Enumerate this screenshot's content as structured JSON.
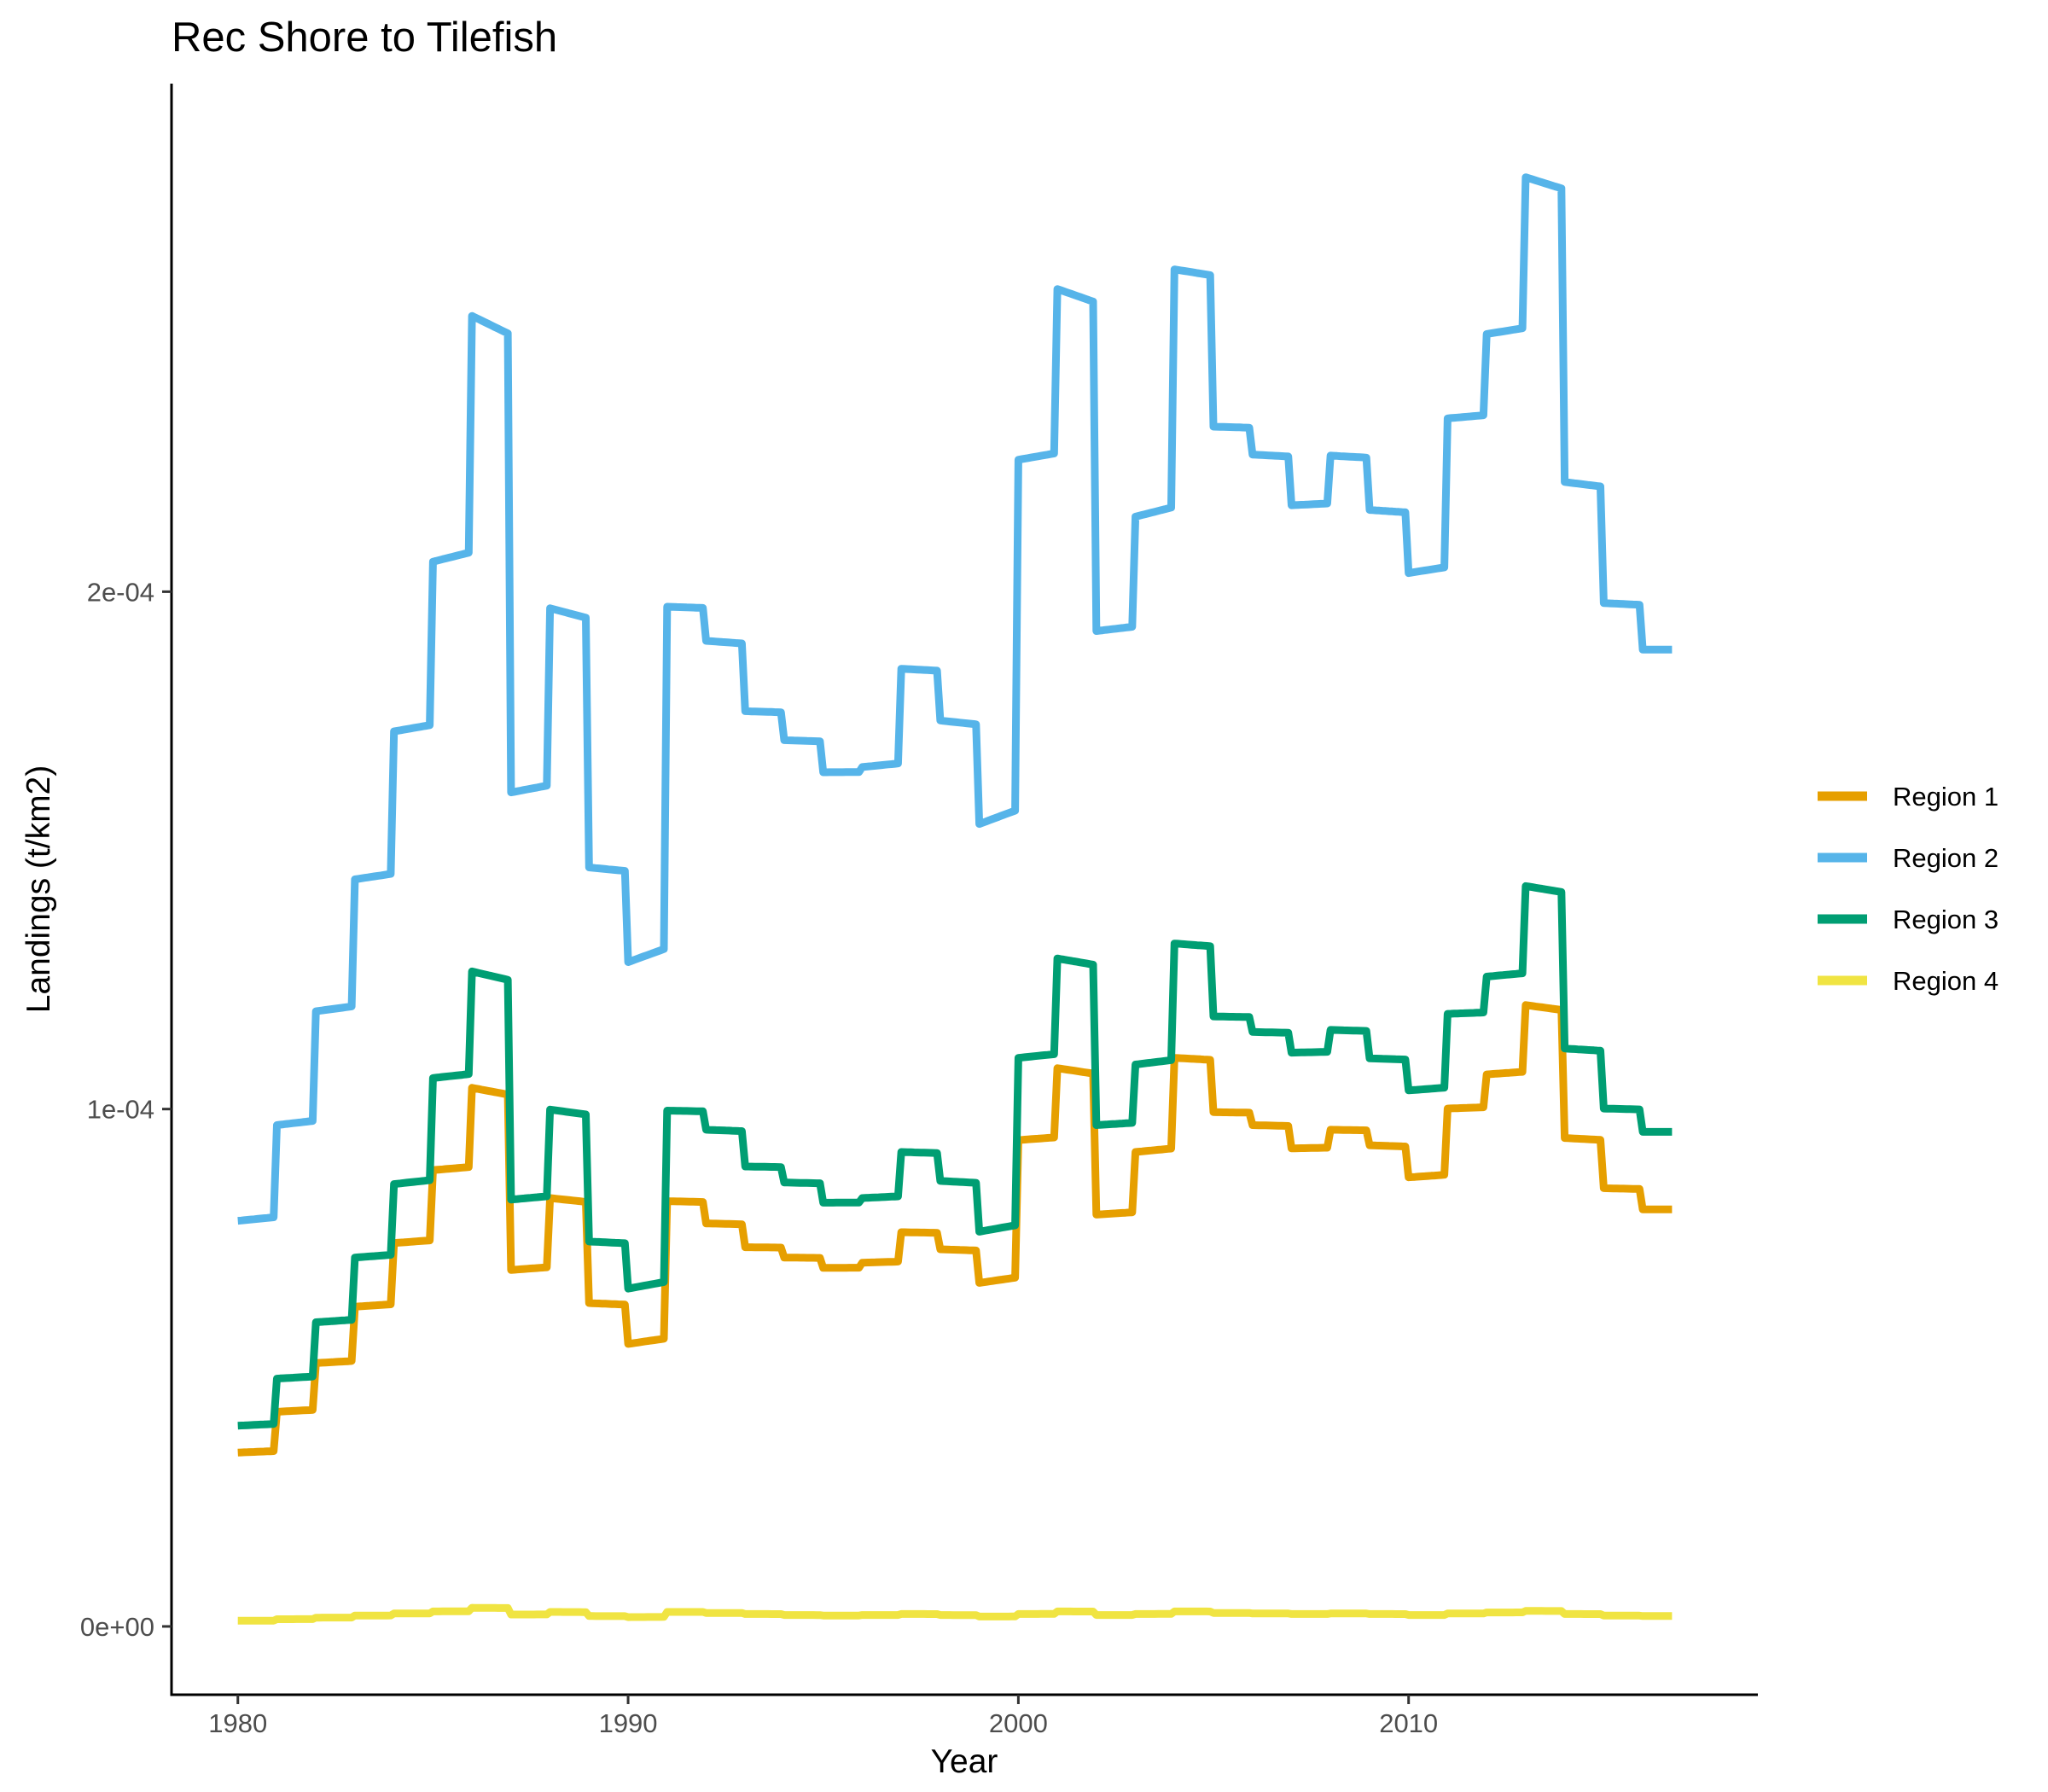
{
  "chart_data": {
    "type": "line",
    "title": "Rec Shore to Tilefish",
    "xlabel": "Year",
    "ylabel": "Landings (t/km2)",
    "xlim": [
      1978.3,
      2018.95
    ],
    "ylim": [
      -1.32e-05,
      0.0002982
    ],
    "x_ticks": [
      1980,
      1990,
      2000,
      2010
    ],
    "x_tick_labels": [
      "1980",
      "1990",
      "2000",
      "2010"
    ],
    "y_ticks": [
      0,
      0.0001,
      0.0002
    ],
    "y_tick_labels": [
      "0e+00",
      "1e-04",
      "2e-04"
    ],
    "grid": false,
    "legend_position": "right",
    "colors": {
      "Region 1": "#E69F00",
      "Region 2": "#56B4E9",
      "Region 3": "#009E73",
      "Region 4": "#F0E442"
    },
    "series": [
      {
        "name": "Region 1",
        "color": "#E69F00",
        "annual": [
          3.36e-05,
          4.15e-05,
          5.09e-05,
          6.18e-05,
          7.41e-05,
          8.82e-05,
          0.0001041,
          6.89e-05,
          8.28e-05,
          6.25e-05,
          5.46e-05,
          8.22e-05,
          7.79e-05,
          7.33e-05,
          7.13e-05,
          6.93e-05,
          7.03e-05,
          7.62e-05,
          7.29e-05,
          6.64e-05,
          9.4e-05,
          0.0001079,
          7.96e-05,
          9.17e-05,
          0.0001099,
          9.94e-05,
          9.69e-05,
          9.24e-05,
          9.6e-05,
          9.3e-05,
          8.68e-05,
          0.0001001,
          0.0001067,
          0.0001201,
          9.44e-05,
          8.47e-05,
          8.06e-05
        ]
      },
      {
        "name": "Region 2",
        "color": "#56B4E9",
        "annual": [
          7.84e-05,
          9.69e-05,
          0.0001189,
          0.0001444,
          0.000173,
          0.0002058,
          0.0002533,
          0.0001612,
          0.0001968,
          0.0001467,
          0.0001284,
          0.0001971,
          0.0001905,
          0.0001769,
          0.0001713,
          0.0001651,
          0.0001661,
          0.0001851,
          0.0001751,
          0.0001551,
          0.0002255,
          0.0002585,
          0.0001924,
          0.0002145,
          0.0002623,
          0.0002319,
          0.0002265,
          0.0002167,
          0.0002263,
          0.0002158,
          0.0002036,
          0.0002335,
          0.0002498,
          0.0002801,
          0.0002212,
          0.0001978,
          0.0001888
        ]
      },
      {
        "name": "Region 3",
        "color": "#009E73",
        "annual": [
          3.88e-05,
          4.79e-05,
          5.88e-05,
          7.13e-05,
          8.55e-05,
          0.000106,
          0.0001266,
          8.25e-05,
          9.99e-05,
          7.44e-05,
          6.53e-05,
          9.97e-05,
          9.6e-05,
          8.89e-05,
          8.58e-05,
          8.19e-05,
          8.28e-05,
          9.17e-05,
          8.61e-05,
          7.63e-05,
          0.0001099,
          0.0001291,
          9.69e-05,
          0.0001086,
          0.000132,
          0.0001179,
          0.0001149,
          0.0001109,
          0.0001153,
          0.0001098,
          0.0001036,
          0.0001184,
          0.0001256,
          0.0001431,
          0.0001117,
          0.0001001,
          9.56e-05
        ]
      },
      {
        "name": "Region 4",
        "color": "#F0E442",
        "annual": [
          1.1e-06,
          1.4e-06,
          1.7e-06,
          2.1e-06,
          2.5e-06,
          2.9e-06,
          3.6e-06,
          2.3e-06,
          2.8e-06,
          2e-06,
          1.8e-06,
          2.8e-06,
          2.6e-06,
          2.4e-06,
          2.2e-06,
          2.1e-06,
          2.2e-06,
          2.4e-06,
          2.2e-06,
          1.9e-06,
          2.4e-06,
          2.9e-06,
          2.2e-06,
          2.4e-06,
          2.9e-06,
          2.6e-06,
          2.5e-06,
          2.4e-06,
          2.5e-06,
          2.4e-06,
          2.2e-06,
          2.5e-06,
          2.7e-06,
          3e-06,
          2.4e-06,
          2.1e-06,
          2e-06
        ]
      }
    ]
  }
}
